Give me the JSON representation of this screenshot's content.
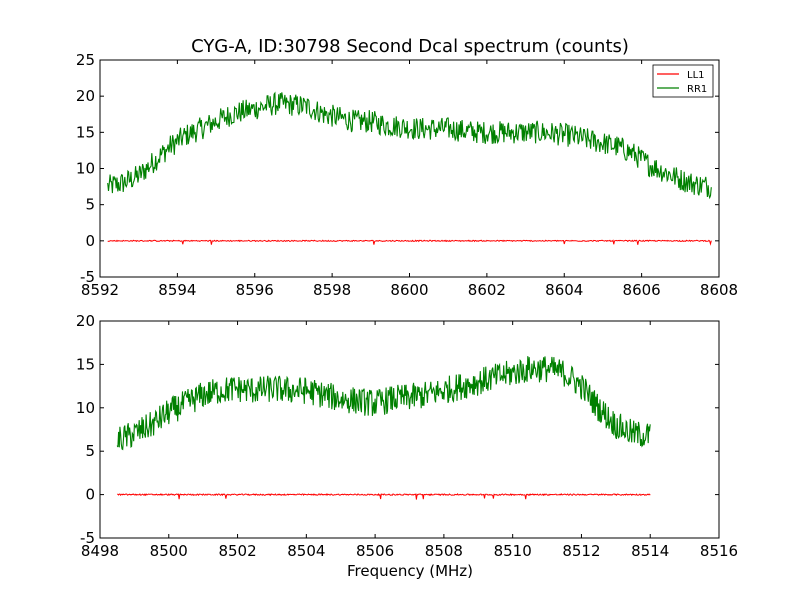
{
  "title": "CYG-A, ID:30798 Second Dcal spectrum (counts)",
  "colors": {
    "LL1": "#ff0000",
    "RR1": "#008000"
  },
  "chart_data": [
    {
      "type": "line",
      "xlim": [
        8592,
        8608
      ],
      "ylim": [
        -5,
        25
      ],
      "xticks": [
        8592,
        8594,
        8596,
        8598,
        8600,
        8602,
        8604,
        8606,
        8608
      ],
      "yticks": [
        -5,
        0,
        5,
        10,
        15,
        20,
        25
      ],
      "legend": {
        "position": "top-right",
        "entries": [
          "LL1",
          "RR1"
        ]
      },
      "series": [
        {
          "name": "RR1",
          "x": [
            8592.2,
            8592.6,
            8593.0,
            8593.4,
            8593.8,
            8594.2,
            8594.6,
            8595.0,
            8595.4,
            8595.8,
            8596.2,
            8596.6,
            8597.0,
            8597.4,
            8597.8,
            8598.2,
            8598.6,
            8599.0,
            8599.4,
            8599.8,
            8600.2,
            8600.6,
            8601.0,
            8601.4,
            8601.8,
            8602.2,
            8602.6,
            8603.0,
            8603.4,
            8603.8,
            8604.2,
            8604.6,
            8605.0,
            8605.4,
            8605.8,
            8606.2,
            8606.6,
            8607.0,
            8607.4,
            8607.8
          ],
          "values": [
            7.5,
            8.0,
            9.0,
            11.0,
            13.0,
            14.5,
            15.5,
            16.5,
            17.5,
            18.0,
            18.5,
            19.0,
            18.8,
            18.5,
            17.5,
            17.0,
            16.5,
            16.5,
            16.0,
            15.8,
            15.5,
            15.5,
            15.5,
            15.2,
            15.0,
            15.0,
            15.0,
            15.0,
            15.0,
            14.8,
            14.5,
            14.0,
            13.5,
            13.0,
            12.0,
            10.5,
            9.5,
            8.5,
            7.8,
            7.5
          ]
        },
        {
          "name": "LL1",
          "x": [
            8592.2,
            8607.8
          ],
          "values": [
            0,
            0
          ]
        }
      ]
    },
    {
      "type": "line",
      "xlim": [
        8498,
        8516
      ],
      "ylim": [
        -5,
        20
      ],
      "xticks": [
        8498,
        8500,
        8502,
        8504,
        8506,
        8508,
        8510,
        8512,
        8514,
        8516
      ],
      "yticks": [
        -5,
        0,
        5,
        10,
        15,
        20
      ],
      "xlabel": "Frequency (MHz)",
      "series": [
        {
          "name": "RR1",
          "x": [
            8498.5,
            8499.0,
            8499.5,
            8500.0,
            8500.5,
            8501.0,
            8501.5,
            8502.0,
            8502.5,
            8503.0,
            8503.5,
            8504.0,
            8504.5,
            8505.0,
            8505.5,
            8506.0,
            8506.5,
            8507.0,
            8507.5,
            8508.0,
            8508.5,
            8509.0,
            8509.5,
            8510.0,
            8510.5,
            8511.0,
            8511.5,
            8512.0,
            8512.5,
            8513.0,
            8513.5,
            8514.0
          ],
          "values": [
            6.2,
            7.0,
            8.0,
            9.5,
            10.5,
            11.5,
            12.0,
            12.2,
            12.0,
            12.2,
            12.0,
            12.0,
            11.5,
            11.0,
            10.8,
            10.5,
            11.0,
            11.2,
            11.5,
            12.0,
            12.5,
            13.0,
            13.5,
            14.0,
            14.5,
            14.5,
            14.0,
            12.5,
            10.0,
            8.0,
            7.0,
            6.8
          ]
        },
        {
          "name": "LL1",
          "x": [
            8498.5,
            8514.0
          ],
          "values": [
            0,
            0
          ]
        }
      ]
    }
  ]
}
